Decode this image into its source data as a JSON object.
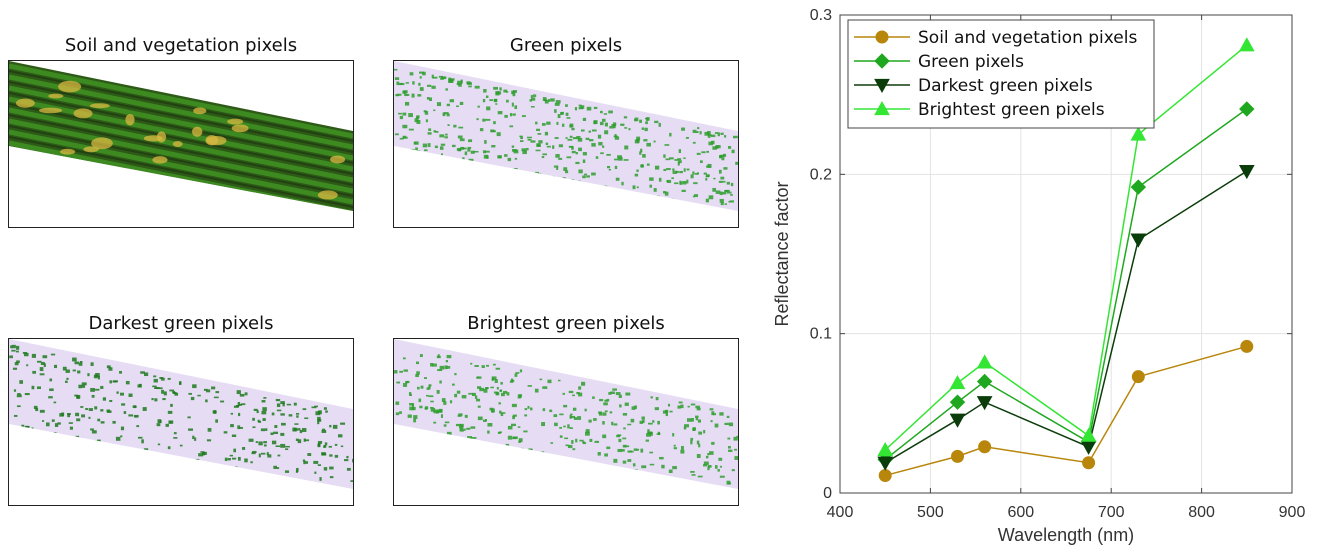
{
  "panels": [
    {
      "title": "Soil and vegetation pixels",
      "kind": "soil"
    },
    {
      "title": "Green pixels",
      "kind": "green"
    },
    {
      "title": "Darkest green pixels",
      "kind": "dark"
    },
    {
      "title": "Brightest green pixels",
      "kind": "bright"
    }
  ],
  "colors": {
    "soil": "#B8860B",
    "green": "#1FA81F",
    "dark": "#0B3D0B",
    "bright": "#33E633",
    "strip_bg": "#E6DDF5"
  },
  "chart_data": {
    "type": "line",
    "xlabel": "Wavelength (nm)",
    "ylabel": "Reflectance factor",
    "xlim": [
      400,
      900
    ],
    "ylim": [
      0,
      0.3
    ],
    "xticks": [
      400,
      500,
      600,
      700,
      800,
      900
    ],
    "yticks": [
      0,
      0.1,
      0.2,
      0.3
    ],
    "ytick_labels": [
      "0",
      "0.1",
      "0.2",
      "0.3"
    ],
    "grid": true,
    "legend_position": "top-left",
    "x": [
      450,
      530,
      560,
      675,
      730,
      850
    ],
    "series": [
      {
        "name": "Soil and vegetation pixels",
        "marker": "circle",
        "color": "#B8860B",
        "values": [
          0.011,
          0.023,
          0.029,
          0.019,
          0.073,
          0.092
        ]
      },
      {
        "name": "Green pixels",
        "marker": "diamond",
        "color": "#1FA81F",
        "values": [
          0.021,
          0.057,
          0.07,
          0.032,
          0.192,
          0.241
        ]
      },
      {
        "name": "Darkest green pixels",
        "marker": "triangle-down",
        "color": "#0B3D0B",
        "values": [
          0.019,
          0.046,
          0.057,
          0.029,
          0.159,
          0.202
        ]
      },
      {
        "name": "Brightest green pixels",
        "marker": "triangle-up",
        "color": "#33E633",
        "values": [
          0.027,
          0.069,
          0.082,
          0.036,
          0.225,
          0.281
        ]
      }
    ]
  }
}
